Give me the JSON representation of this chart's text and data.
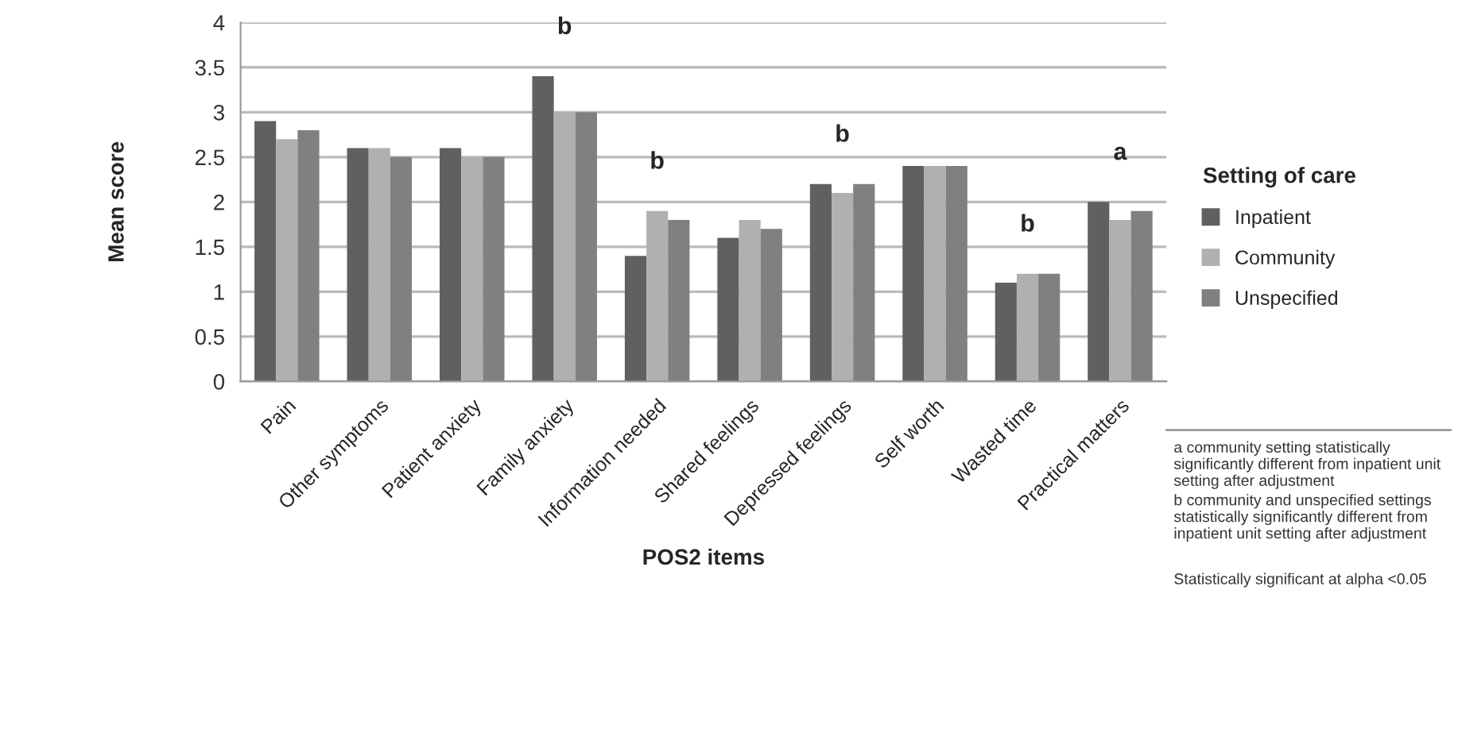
{
  "chart_data": {
    "type": "bar",
    "xlabel": "POS2 items",
    "ylabel": "Mean score",
    "legend_title": "Setting of care",
    "categories": [
      "Pain",
      "Other symptoms",
      "Patient anxiety",
      "Family anxiety",
      "Information needed",
      "Shared feelings",
      "Depressed feelings",
      "Self worth",
      "Wasted time",
      "Practical matters"
    ],
    "series": [
      {
        "name": "Inpatient",
        "color": "#606060",
        "values": [
          2.9,
          2.6,
          2.6,
          3.4,
          1.4,
          1.6,
          2.2,
          2.4,
          1.1,
          2.0
        ]
      },
      {
        "name": "Community",
        "color": "#b0b0b0",
        "values": [
          2.7,
          2.6,
          2.5,
          3.0,
          1.9,
          1.8,
          2.1,
          2.4,
          1.2,
          1.8
        ]
      },
      {
        "name": "Unspecified",
        "color": "#808080",
        "values": [
          2.8,
          2.5,
          2.5,
          3.0,
          1.8,
          1.7,
          2.2,
          2.4,
          1.2,
          1.9
        ]
      }
    ],
    "ylim": [
      0,
      4
    ],
    "yticks": [
      0,
      0.5,
      1,
      1.5,
      2,
      2.5,
      3,
      3.5,
      4
    ],
    "grid": "y",
    "legend": "right",
    "annotations": [
      "b",
      "b",
      "b",
      "b",
      "a",
      "a community setting statistically significantly different from inpatient unit setting after adjustment",
      "b community and unspecified settings statistically significantly different from inpatient unit setting after adjustment",
      "Statistically significant at alpha <0.05"
    ]
  }
}
